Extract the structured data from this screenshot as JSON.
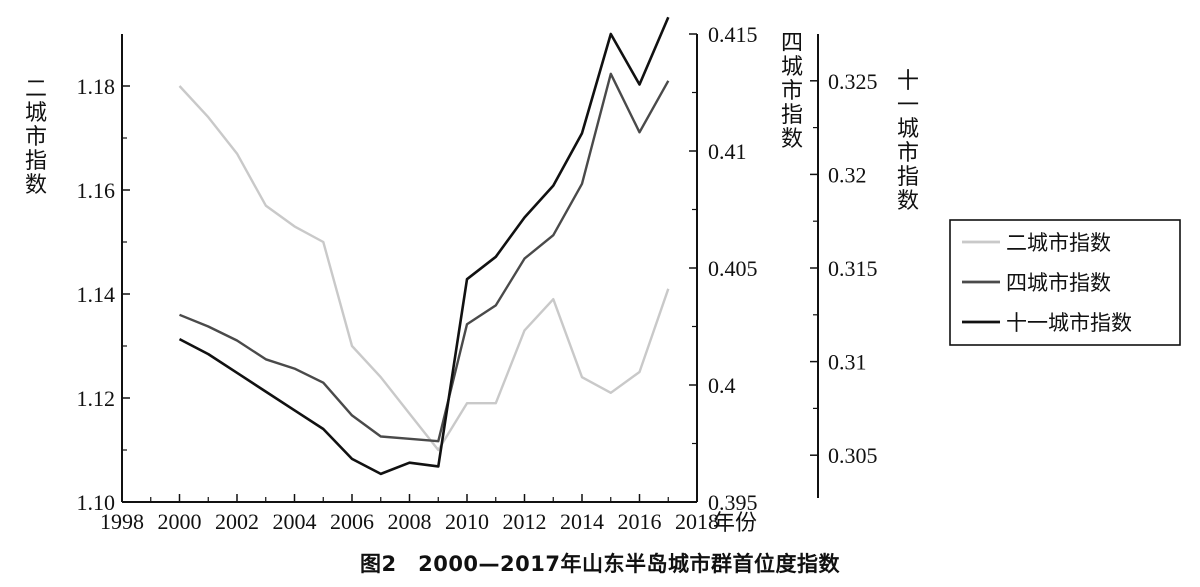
{
  "caption": "图2　2000—2017年山东半岛城市群首位度指数",
  "chart_data": {
    "type": "line",
    "title": "",
    "xlabel": "年份",
    "x_ticks": [
      "1998",
      "2000",
      "2002",
      "2004",
      "2006",
      "2008",
      "2010",
      "2012",
      "2014",
      "2016",
      "2018"
    ],
    "xlim": [
      1998,
      2018
    ],
    "axes": {
      "left": {
        "label": "二城市指数",
        "ylim": [
          1.1,
          1.19
        ],
        "ticks": [
          "1.10",
          "1.12",
          "1.14",
          "1.16",
          "1.18"
        ],
        "tick_values": [
          1.1,
          1.12,
          1.14,
          1.16,
          1.18
        ]
      },
      "middle": {
        "label": "四城市指数",
        "ylim": [
          0.395,
          0.415
        ],
        "ticks": [
          "0.395",
          "0.4",
          "0.405",
          "0.41",
          "0.415"
        ],
        "tick_values": [
          0.395,
          0.4,
          0.405,
          0.41,
          0.415
        ]
      },
      "right": {
        "label": "十一城市指数",
        "ylim": [
          0.3025,
          0.3275
        ],
        "ticks": [
          "0.305",
          "0.31",
          "0.315",
          "0.32",
          "0.325"
        ],
        "tick_values": [
          0.305,
          0.31,
          0.315,
          0.32,
          0.325
        ]
      }
    },
    "x": [
      2000,
      2001,
      2002,
      2003,
      2004,
      2005,
      2006,
      2007,
      2008,
      2009,
      2010,
      2011,
      2012,
      2013,
      2014,
      2015,
      2016,
      2017
    ],
    "series": [
      {
        "name": "二城市指数",
        "axis": "left",
        "color": "#c9c9c9",
        "values": [
          1.18,
          1.174,
          1.167,
          1.157,
          1.153,
          1.15,
          1.13,
          1.124,
          1.117,
          1.11,
          1.119,
          1.119,
          1.133,
          1.139,
          1.124,
          1.121,
          1.125,
          1.141
        ]
      },
      {
        "name": "四城市指数",
        "axis": "middle",
        "color": "#4a4a4a",
        "values": [
          0.403,
          0.4025,
          0.4019,
          0.4011,
          0.4007,
          0.4001,
          0.3987,
          0.3978,
          0.3977,
          0.3976,
          0.4026,
          0.4034,
          0.4054,
          0.4064,
          0.4086,
          0.4133,
          0.4108,
          0.413
        ]
      },
      {
        "name": "十一城市指数",
        "axis": "right",
        "color": "#111111",
        "values": [
          0.3112,
          0.3104,
          0.3094,
          0.3084,
          0.3074,
          0.3064,
          0.3048,
          0.304,
          0.3046,
          0.3044,
          0.3144,
          0.3156,
          0.3177,
          0.3194,
          0.3222,
          0.3275,
          0.3248,
          0.3284
        ]
      }
    ],
    "legend": {
      "position": "right",
      "entries": [
        "二城市指数",
        "四城市指数",
        "十一城市指数"
      ]
    },
    "grid": false
  }
}
